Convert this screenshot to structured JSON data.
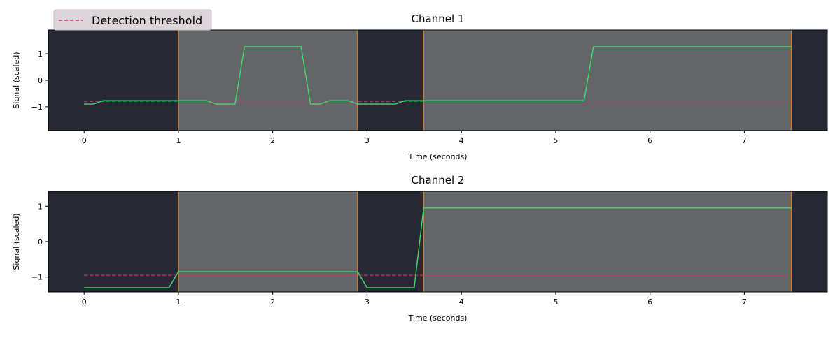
{
  "legend": {
    "placement": "top-left",
    "label": "Detection threshold",
    "color": "#e0287a"
  },
  "colors": {
    "background_region": "#262833",
    "highlight_region": "#646567",
    "region_edge": "#d9822b",
    "signal": "#3ddc72",
    "threshold": "#e0287a"
  },
  "chart_data": [
    {
      "type": "line",
      "title": "Channel 1",
      "xlabel": "Time (seconds)",
      "ylabel": "Signal (scaled)",
      "xlim": [
        -0.38,
        7.88
      ],
      "ylim": [
        -1.9,
        1.9
      ],
      "xticks": [
        0,
        1,
        2,
        3,
        4,
        5,
        6,
        7
      ],
      "xtick_labels": [
        "0",
        "1",
        "2",
        "3",
        "4",
        "5",
        "6",
        "7"
      ],
      "yticks": [
        1,
        0,
        -1
      ],
      "ytick_labels": [
        "1",
        "0",
        "−1"
      ],
      "grid": false,
      "highlight_regions": [
        [
          1.0,
          2.9
        ],
        [
          3.6,
          7.5
        ]
      ],
      "threshold": {
        "y": -0.8,
        "x": [
          0,
          7.5
        ],
        "style": "dashed"
      },
      "series": [
        {
          "x": [
            0,
            0.1,
            0.2,
            1.3,
            1.4,
            1.6,
            1.7,
            2.3,
            2.4,
            2.5,
            2.6,
            2.8,
            2.9,
            3.3,
            3.4,
            5.3,
            5.4,
            7.5
          ],
          "values": [
            -0.9,
            -0.9,
            -0.77,
            -0.77,
            -0.9,
            -0.9,
            1.27,
            1.27,
            -0.9,
            -0.9,
            -0.77,
            -0.77,
            -0.9,
            -0.9,
            -0.77,
            -0.77,
            1.27,
            1.27
          ]
        }
      ]
    },
    {
      "type": "line",
      "title": "Channel 2",
      "xlabel": "Time (seconds)",
      "ylabel": "Signal (scaled)",
      "xlim": [
        -0.38,
        7.88
      ],
      "ylim": [
        -1.42,
        1.42
      ],
      "xticks": [
        0,
        1,
        2,
        3,
        4,
        5,
        6,
        7
      ],
      "xtick_labels": [
        "0",
        "1",
        "2",
        "3",
        "4",
        "5",
        "6",
        "7"
      ],
      "yticks": [
        1,
        0,
        -1
      ],
      "ytick_labels": [
        "1",
        "0",
        "−1"
      ],
      "grid": false,
      "highlight_regions": [
        [
          1.0,
          2.9
        ],
        [
          3.6,
          7.5
        ]
      ],
      "threshold": {
        "y": -0.95,
        "x": [
          0,
          7.5
        ],
        "style": "dashed"
      },
      "series": [
        {
          "x": [
            0,
            0.9,
            1.0,
            2.9,
            3.0,
            3.5,
            3.6,
            7.5
          ],
          "values": [
            -1.3,
            -1.3,
            -0.85,
            -0.85,
            -1.3,
            -1.3,
            0.95,
            0.95
          ]
        }
      ]
    }
  ]
}
